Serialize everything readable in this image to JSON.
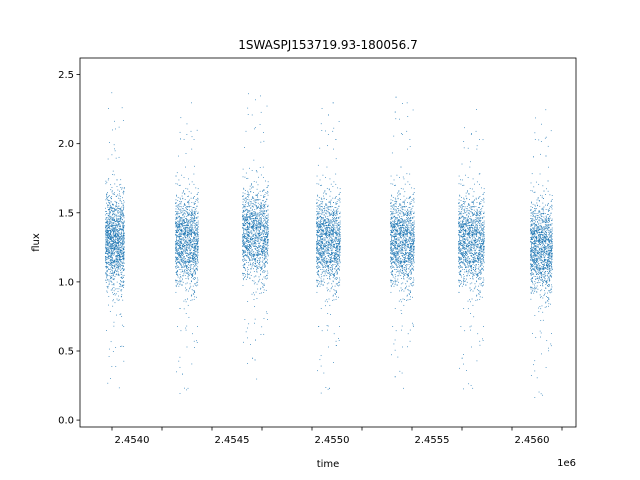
{
  "chart_data": {
    "type": "scatter",
    "title": "1SWASPJ153719.93-180056.7",
    "xlabel": "time",
    "ylabel": "flux",
    "x_offset_label": "1e6",
    "xlim": [
      2453740,
      2456220
    ],
    "ylim": [
      -0.05,
      2.62
    ],
    "x_ticks": [
      2453900,
      2454150,
      2454400,
      2454650,
      2454900,
      2455150,
      2455400,
      2455650,
      2455900,
      2456150
    ],
    "x_tick_labels": [
      "2.4540",
      "2.4545",
      "2.4550",
      "2.4555",
      "2.4560"
    ],
    "x_tick_label_values": [
      2454000,
      2454500,
      2455000,
      2455500,
      2456000
    ],
    "y_ticks": [
      0.0,
      0.5,
      1.0,
      1.5,
      2.0,
      2.5
    ],
    "y_tick_labels": [
      "0.0",
      "0.5",
      "1.0",
      "1.5",
      "2.0",
      "2.5"
    ],
    "grid": false,
    "marker_color": "#1f77b4",
    "seasons": [
      {
        "start": 2453865,
        "end": 2453960,
        "flux_median": 1.3,
        "flux_min": 0.07,
        "flux_max": 2.41
      },
      {
        "start": 2454215,
        "end": 2454330,
        "flux_median": 1.3,
        "flux_min": 0.08,
        "flux_max": 2.33
      },
      {
        "start": 2454550,
        "end": 2454680,
        "flux_median": 1.35,
        "flux_min": 0.3,
        "flux_max": 2.5
      },
      {
        "start": 2454920,
        "end": 2455040,
        "flux_median": 1.3,
        "flux_min": 0.08,
        "flux_max": 2.4
      },
      {
        "start": 2455290,
        "end": 2455410,
        "flux_median": 1.3,
        "flux_min": 0.2,
        "flux_max": 2.48
      },
      {
        "start": 2455630,
        "end": 2455760,
        "flux_median": 1.3,
        "flux_min": 0.12,
        "flux_max": 2.25
      },
      {
        "start": 2455990,
        "end": 2456100,
        "flux_median": 1.25,
        "flux_min": 0.05,
        "flux_max": 2.33
      }
    ]
  }
}
